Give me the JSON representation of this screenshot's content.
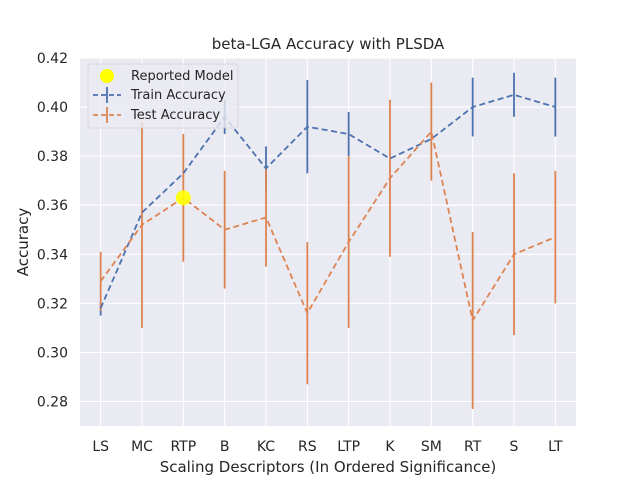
{
  "chart_data": {
    "type": "line",
    "title": "beta-LGA Accuracy with PLSDA",
    "xlabel": "Scaling Descriptors (In Ordered Significance)",
    "ylabel": "Accuracy",
    "categories": [
      "LS",
      "MC",
      "RTP",
      "B",
      "KC",
      "RS",
      "LTP",
      "K",
      "SM",
      "RT",
      "S",
      "LT"
    ],
    "ylim": [
      0.27,
      0.42
    ],
    "yticks": [
      0.28,
      0.3,
      0.32,
      0.34,
      0.36,
      0.38,
      0.4,
      0.42
    ],
    "ytick_labels": [
      "0.28",
      "0.30",
      "0.32",
      "0.34",
      "0.36",
      "0.38",
      "0.40",
      "0.42"
    ],
    "grid": true,
    "legend_position": "top-left",
    "series": [
      {
        "name": "Train Accuracy",
        "color": "#4c72b0",
        "values": [
          0.318,
          0.357,
          0.373,
          0.396,
          0.375,
          0.392,
          0.389,
          0.379,
          0.387,
          0.4,
          0.405,
          0.4
        ],
        "errors": [
          0.003,
          0.0,
          0.0,
          0.007,
          0.009,
          0.019,
          0.009,
          0.0,
          0.0,
          0.012,
          0.009,
          0.012
        ]
      },
      {
        "name": "Test Accuracy",
        "color": "#dd8452",
        "values": [
          0.329,
          0.352,
          0.363,
          0.35,
          0.355,
          0.316,
          0.345,
          0.371,
          0.39,
          0.313,
          0.34,
          0.347
        ],
        "errors": [
          0.012,
          0.042,
          0.026,
          0.024,
          0.02,
          0.029,
          0.035,
          0.032,
          0.02,
          0.036,
          0.033,
          0.027
        ]
      }
    ],
    "highlight": {
      "name": "Reported Model",
      "color": "#ffff00",
      "category": "RTP",
      "value": 0.363
    }
  }
}
